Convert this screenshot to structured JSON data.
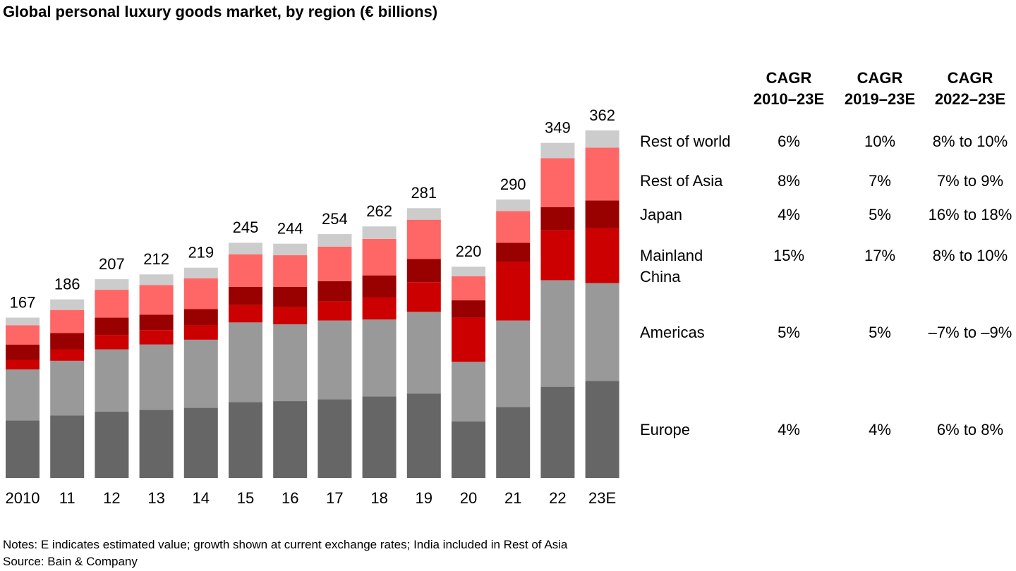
{
  "chart_data": {
    "type": "stacked_bar",
    "title": "Global personal luxury goods market, by region (€ billions)",
    "categories": [
      "2010",
      "11",
      "12",
      "13",
      "14",
      "15",
      "16",
      "17",
      "18",
      "19",
      "20",
      "21",
      "22",
      "23E"
    ],
    "totals": [
      167,
      186,
      207,
      212,
      219,
      245,
      244,
      254,
      262,
      281,
      220,
      290,
      349,
      362
    ],
    "series": [
      {
        "name": "Europe",
        "color": "#666666",
        "values": [
          60,
          65,
          69,
          71,
          73,
          79,
          80,
          82,
          85,
          88,
          59,
          74,
          95,
          101
        ]
      },
      {
        "name": "Americas",
        "color": "#999999",
        "values": [
          53,
          57,
          65,
          68,
          71,
          83,
          80,
          82,
          80,
          85,
          62,
          90,
          111,
          102
        ]
      },
      {
        "name": "Mainland China",
        "color": "#cc0000",
        "values": [
          10,
          12,
          15,
          15,
          15,
          18,
          18,
          20,
          23,
          31,
          46,
          61,
          52,
          57
        ]
      },
      {
        "name": "Japan",
        "color": "#990000",
        "values": [
          16,
          17,
          18,
          16,
          17,
          19,
          21,
          21,
          23,
          24,
          18,
          20,
          24,
          29
        ]
      },
      {
        "name": "Rest of Asia",
        "color": "#ff6666",
        "values": [
          20,
          24,
          29,
          31,
          32,
          34,
          33,
          36,
          38,
          41,
          25,
          33,
          51,
          55
        ]
      },
      {
        "name": "Rest of world",
        "color": "#cccccc",
        "values": [
          8,
          11,
          11,
          11,
          11,
          12,
          12,
          13,
          13,
          12,
          10,
          12,
          16,
          18
        ]
      }
    ]
  },
  "table": {
    "headers": [
      "CAGR\n2010–23E",
      "CAGR\n2019–23E",
      "CAGR\n2022–23E"
    ],
    "rows": [
      [
        "Rest of world",
        "6%",
        "10%",
        "8% to 10%"
      ],
      [
        "Rest of Asia",
        "8%",
        "7%",
        "7% to 9%"
      ],
      [
        "Japan",
        "4%",
        "5%",
        "16% to 18%"
      ],
      [
        "Mainland\nChina",
        "15%",
        "17%",
        "8% to 10%"
      ],
      [
        "Americas",
        "5%",
        "5%",
        "–7% to –9%"
      ],
      [
        "Europe",
        "4%",
        "4%",
        "6% to 8%"
      ]
    ]
  },
  "notes": [
    "Notes: E indicates estimated value; growth shown at current exchange rates; India included in Rest of Asia",
    "Source: Bain & Company"
  ]
}
